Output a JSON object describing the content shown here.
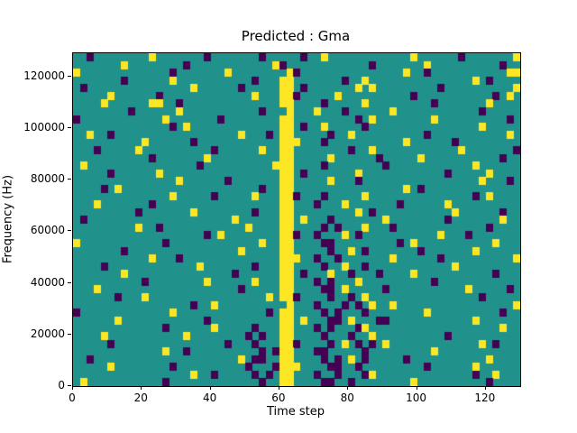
{
  "figure": {
    "background": "#ffffff"
  },
  "chart_data": {
    "type": "heatmap",
    "title": "Predicted : Gma",
    "xlabel": "Time step",
    "ylabel": "Frequency (Hz)",
    "xlim": [
      0,
      130
    ],
    "ylim": [
      0,
      129000
    ],
    "xticks": {
      "values": [
        0,
        20,
        40,
        60,
        80,
        100,
        120
      ],
      "labels": [
        "0",
        "20",
        "40",
        "60",
        "80",
        "100",
        "120"
      ]
    },
    "yticks": {
      "values": [
        0,
        20000,
        40000,
        60000,
        80000,
        100000,
        120000
      ],
      "labels": [
        "0",
        "20000",
        "40000",
        "60000",
        "80000",
        "100000",
        "120000"
      ]
    },
    "legend": "none",
    "grid_on": false,
    "colormap": {
      "name": "viridis-3-level",
      "mid_teal": "#21918c",
      "high_yellow": "#fde725",
      "low_purple": "#440154"
    },
    "cell_codes": {
      ".": "mid (teal)",
      "Y": "high (yellow)",
      "P": "low (purple)"
    },
    "cell_size": {
      "time_steps": 2,
      "hz": 3000
    },
    "grid": {
      "cols": 65,
      "rows_count": 43,
      "order": "top_to_bottom",
      "rows": [
        [
          "..P..",
          ".....",
          ".Y...",
          "....P",
          ".....",
          "..P..",
          "...P.",
          ".Y...",
          ".....",
          "....Y",
          ".....",
          ".P...",
          "....Y"
        ],
        [
          ".....",
          "..Y..",
          ".....",
          ".P...",
          ".....",
          "....Y",
          "P....",
          ".....",
          "...P.",
          ".....",
          ".Y...",
          ".....",
          "..P.."
        ],
        [
          "Y....",
          ".....",
          "....P",
          ".....",
          "..Y..",
          ".....",
          ".YP..",
          ".....",
          ".....",
          "...Y.",
          ".P...",
          ".....",
          "...YY"
        ],
        [
          ".....",
          "..P..",
          "....Y",
          ".....",
          ".....",
          ".P...",
          "YY...",
          "....P",
          "..Y..",
          ".....",
          ".....",
          "...Y.",
          "P...."
        ],
        [
          ".P...",
          ".....",
          ".....",
          "..Y..",
          "....P",
          ".....",
          "YY.P.",
          ".....",
          ".Y.Y.",
          ".....",
          "...P.",
          ".....",
          "....Y"
        ],
        [
          ".....",
          "Y....",
          "..P..",
          ".....",
          ".....",
          ".Y...",
          "YYP..",
          "...Y.",
          ".....",
          "....P",
          ".....",
          ".....",
          ".P.Y."
        ],
        [
          "....Y",
          ".....",
          ".YY..",
          "P....",
          ".....",
          ".....",
          "YY...",
          ".P...",
          "..Y..",
          ".....",
          "..P..",
          ".....",
          "Y...."
        ],
        [
          ".....",
          "...P.",
          ".....",
          "Y....",
          ".....",
          "..P..",
          ".Y...",
          "Y...P",
          ".....",
          ".Y...",
          ".....",
          "....P",
          "....."
        ],
        [
          "P....",
          ".....",
          "...Y.",
          ".....",
          ".P...",
          ".....",
          "YY...",
          ".....",
          ".P.Y.",
          ".....",
          "..Y..",
          ".....",
          "...P."
        ],
        [
          ".....",
          ".....",
          "....P",
          ".Y...",
          ".....",
          ".....",
          "YY.P.",
          ".Y...",
          "..P..",
          ".....",
          ".....",
          "....Y",
          "....."
        ],
        [
          "..Y..",
          "P....",
          ".....",
          ".....",
          "....Y",
          "...P.",
          "YY...",
          "..P..",
          "Y....",
          ".....",
          ".P...",
          ".....",
          "...Y."
        ],
        [
          ".....",
          ".....",
          "Y....",
          "..P..",
          ".....",
          ".....",
          "YYY..",
          ".P...",
          ".....",
          "...Y.",
          ".....",
          "P....",
          "....."
        ],
        [
          "...P.",
          "....Y",
          ".....",
          ".....",
          "P....",
          "..Y..",
          "YY...",
          ".....",
          "P..Y.",
          ".....",
          ".....",
          ".Y...",
          "....P"
        ],
        [
          ".....",
          ".....",
          ".P...",
          "....Y",
          ".....",
          ".....",
          "YY...",
          "..Y..",
          "....P",
          ".....",
          "Y....",
          ".....",
          "..P.."
        ],
        [
          ".Y...",
          ".....",
          ".....",
          "...P.",
          ".....",
          "....Y",
          "YY...",
          ".P...",
          ".....",
          "P....",
          ".....",
          "...Y.",
          "....."
        ],
        [
          ".....",
          "P....",
          "..Y..",
          ".....",
          ".....",
          ".....",
          "YY.P.",
          ".....",
          ".Y...",
          ".....",
          "....P",
          ".....",
          "Y...."
        ],
        [
          ".....",
          ".....",
          ".....",
          "Y....",
          "..P..",
          ".....",
          "YY...",
          "..Y..",
          ".P...",
          ".....",
          ".....",
          "....Y",
          "...P."
        ],
        [
          "....P",
          ".Y...",
          ".....",
          ".....",
          ".....",
          "..P..",
          "YY...",
          ".....",
          ".....",
          "...Y.",
          "P....",
          ".....",
          "....."
        ],
        [
          ".....",
          ".....",
          "....Y",
          ".....",
          "P....",
          ".Y...",
          "YYP..",
          ".P...",
          "..Y..",
          ".....",
          ".....",
          "...P.",
          "Y...."
        ],
        [
          "...Y.",
          ".....",
          ".P...",
          ".....",
          ".....",
          ".....",
          "YY...",
          "P...Y",
          ".....",
          "..P..",
          "....Y",
          ".....",
          "....."
        ],
        [
          ".....",
          "....P",
          ".....",
          "..Y..",
          ".....",
          ".P...",
          "YY...",
          ".....",
          ".Y.P.",
          ".....",
          ".....",
          "Y....",
          "..P.."
        ],
        [
          ".P...",
          ".....",
          ".....",
          ".....",
          "...Y.",
          ".....",
          "YY.Y.",
          "..P..",
          ".....",
          "Y....",
          "....P",
          ".....",
          "..Y.."
        ],
        [
          ".....",
          "....Y",
          "..P..",
          ".....",
          ".....",
          "Y....",
          "YY...",
          ".P.P.",
          "..Y..",
          ".P...",
          ".....",
          ".....",
          "P...."
        ],
        [
          ".....",
          ".....",
          ".....",
          "....P",
          ".Y...",
          ".....",
          "YYP..",
          "P...Y",
          ".P...",
          ".....",
          "...Y.",
          "..P..",
          "....."
        ],
        [
          "Y....",
          ".....",
          "...P.",
          ".....",
          ".....",
          "..Y..",
          "YY...",
          ".PP..",
          ".....",
          "..P.Y",
          ".....",
          ".....",
          ".Y..."
        ],
        [
          ".....",
          "..P..",
          ".....",
          ".....",
          "....Y",
          ".....",
          "YY...",
          "..P..",
          "Y.P..",
          ".....",
          "P....",
          "...Y.",
          "....."
        ],
        [
          ".....",
          ".....",
          ".Y...",
          "P....",
          ".....",
          ".....",
          "YYY..",
          "P..P.",
          ".....",
          ".Y...",
          "...P.",
          ".....",
          "....Y"
        ],
        [
          "....P",
          ".....",
          ".....",
          "...Y.",
          ".....",
          ".P...",
          "YY...",
          ".P..Y",
          "..P..",
          ".....",
          ".....",
          "Y....",
          "....."
        ],
        [
          ".....",
          "..Y..",
          ".....",
          ".....",
          "...P.",
          ".....",
          "YY.P.",
          "..Y..",
          "P...P",
          "....Y",
          ".....",
          ".....",
          ".P..."
        ],
        [
          ".....",
          ".....",
          "P....",
          "....Y",
          ".....",
          ".Y...",
          "YY...",
          "P.P..",
          ".Y...",
          ".....",
          "..P..",
          ".....",
          "....."
        ],
        [
          "...Y.",
          ".....",
          ".....",
          ".....",
          "....P",
          ".....",
          "YY...",
          ".PP.Y",
          ".....",
          "P....",
          ".....",
          "..Y..",
          "...P."
        ],
        [
          ".....",
          ".P...",
          "Y....",
          ".....",
          ".....",
          "...Y.",
          "YYP..",
          "..P..",
          "P.Y..",
          ".....",
          ".....",
          "....P",
          "....."
        ],
        [
          ".....",
          ".....",
          ".....",
          "..P..",
          "Y....",
          ".....",
          ".Y...",
          "P...P",
          ".P.Y.",
          ".Y...",
          ".....",
          ".....",
          "....Y"
        ],
        [
          "P....",
          ".....",
          "....Y",
          ".....",
          ".....",
          "...P.",
          "YY...",
          ".P.P.",
          "..P..",
          ".....",
          ".Y...",
          ".....",
          "..P.."
        ],
        [
          ".....",
          ".Y...",
          ".....",
          "....P",
          ".....",
          ".....",
          "YY.Y.",
          "..PP.",
          "Y...P",
          "P....",
          ".....",
          "...Y.",
          "....."
        ],
        [
          ".....",
          ".....",
          "...P.",
          ".....",
          "Y....",
          ".P...",
          "YY...",
          "P.P..",
          ".PY..",
          ".....",
          ".....",
          ".....",
          "..Y.."
        ],
        [
          "....Y",
          ".....",
          ".....",
          ".Y...",
          ".....",
          "P.P..",
          "YY...",
          ".P...",
          "P..Y.",
          ".....",
          "....P",
          ".....",
          "....."
        ],
        [
          ".....",
          "P....",
          ".....",
          ".....",
          "..P..",
          ".P...",
          "YYP..",
          "..P.Y",
          ".P.P.",
          "Y....",
          ".....",
          "....Y",
          ".P..."
        ],
        [
          ".....",
          ".....",
          "...Y.",
          ".P...",
          ".....",
          "..P.P",
          "YY...",
          "PP...",
          "..P..",
          ".....",
          "..Y..",
          ".....",
          "....."
        ],
        [
          "..P..",
          ".....",
          ".....",
          ".....",
          "....Y",
          ".PP..",
          "YY...",
          ".P.P.",
          "Y.P..",
          "...P.",
          ".....",
          ".....",
          "Y...."
        ],
        [
          ".....",
          "Y....",
          "....P",
          ".....",
          ".....",
          "P...P",
          "YYY..",
          "..PP.",
          ".P...",
          ".....",
          ".P...",
          "...Y.",
          "....."
        ],
        [
          ".....",
          ".....",
          ".....",
          "..Y..",
          "P....",
          ".P.P.",
          "YY...",
          "P..P.",
          "..PY.",
          ".....",
          ".....",
          "...P.",
          ".Y..."
        ],
        [
          ".Y...",
          ".....",
          "...P.",
          ".....",
          ".....",
          "..P..",
          "YY...",
          ".PP..",
          "P....",
          "....Y",
          ".....",
          ".....",
          "P...."
        ]
      ]
    }
  }
}
